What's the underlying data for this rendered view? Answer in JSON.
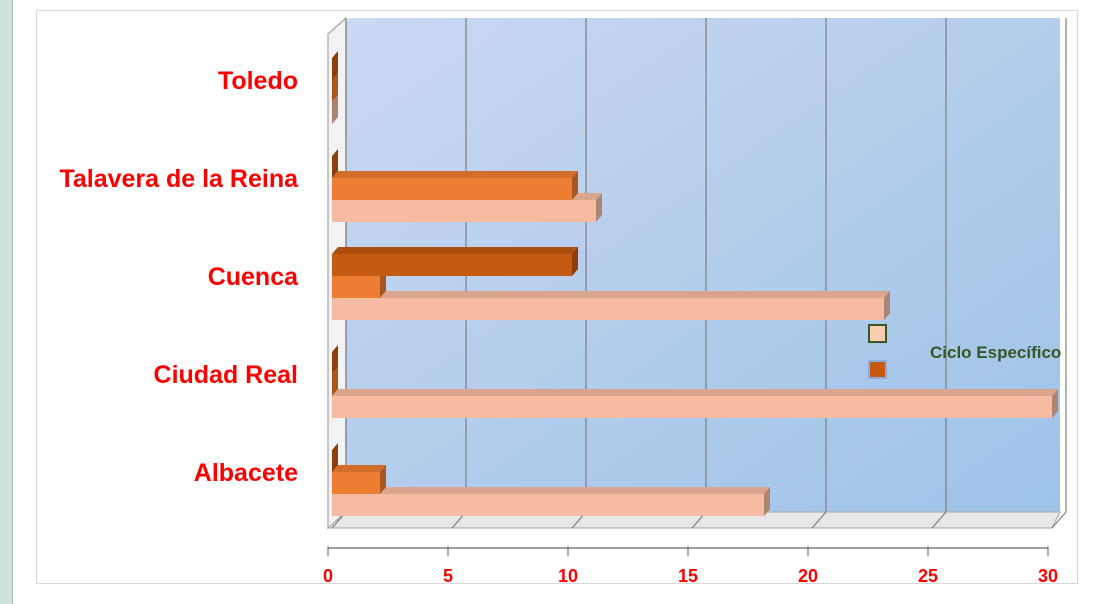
{
  "chart_data": {
    "type": "bar",
    "orientation": "horizontal",
    "categories": [
      "Albacete",
      "Ciudad Real",
      "Cuenca",
      "Talavera de la Reina",
      "Toledo"
    ],
    "series": [
      {
        "name": "Ciclo Específico",
        "values": [
          18,
          30,
          23,
          11,
          0
        ]
      },
      {
        "name": "",
        "values": [
          2,
          0,
          2,
          10,
          0
        ]
      },
      {
        "name": "",
        "values": [
          0,
          0,
          10,
          0,
          0
        ]
      }
    ],
    "x_ticks": [
      "0",
      "5",
      "10",
      "15",
      "20",
      "25",
      "30"
    ],
    "xlim": [
      0,
      30
    ],
    "grid": true,
    "legend_position": "right",
    "colors": {
      "series1": "#f7bba2",
      "series2": "#ed7d31",
      "series3": "#c55a11",
      "plot_light": "#c8d6f0",
      "plot_dark": "#9dc3e6",
      "label": "#ff0000",
      "legend_text": "#375623"
    }
  }
}
